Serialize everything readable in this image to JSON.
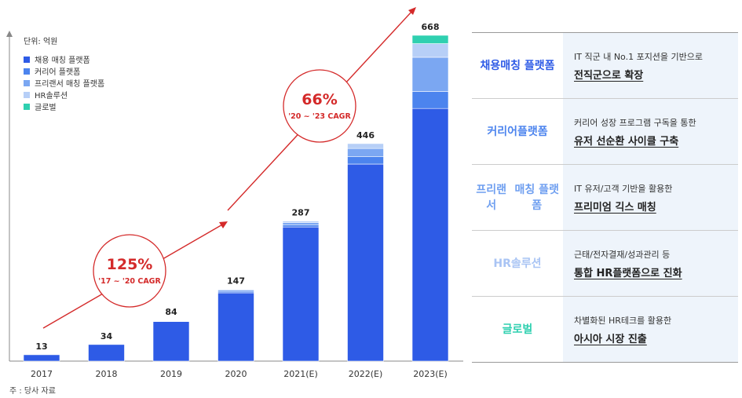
{
  "chart_data": {
    "type": "bar",
    "stacked": true,
    "unit_label": "단위: 억원",
    "categories": [
      "2017",
      "2018",
      "2019",
      "2020",
      "2021(E)",
      "2022(E)",
      "2023(E)"
    ],
    "totals": [
      13,
      34,
      84,
      147,
      287,
      446,
      668
    ],
    "series": [
      {
        "name": "채용 매칭 플랫폼",
        "color": "#2e5be6",
        "values": [
          13,
          34,
          81,
          140,
          275,
          404,
          518
        ]
      },
      {
        "name": "커리어 플랫폼",
        "color": "#4c84ee",
        "values": [
          0,
          0,
          1,
          3,
          4,
          15,
          35
        ]
      },
      {
        "name": "프리랜서 매칭 플랫폼",
        "color": "#7ba7f2",
        "values": [
          0,
          0,
          1,
          3,
          5,
          17,
          70
        ]
      },
      {
        "name": "HR솔루션",
        "color": "#b7cff7",
        "values": [
          0,
          0,
          1,
          1,
          3,
          10,
          28
        ]
      },
      {
        "name": "글로벌",
        "color": "#2fd0b0",
        "values": [
          0,
          0,
          0,
          0,
          0,
          0,
          17
        ]
      }
    ],
    "ylim": [
      0,
      700
    ],
    "annotations": [
      {
        "value": "125%",
        "label": "'17 ~ '20 CAGR"
      },
      {
        "value": "66%",
        "label": "'20 ~ '23 CAGR"
      }
    ],
    "note": "주 : 당사 자료"
  },
  "panel": [
    {
      "title_lines": [
        "채용",
        "매칭 플랫폼"
      ],
      "color": "#2e5be6",
      "sub": "IT 직군 내 No.1 포지션을 기반으로",
      "main": "전직군으로 확장"
    },
    {
      "title_lines": [
        "커리어",
        "플랫폼"
      ],
      "color": "#4c84ee",
      "sub": "커리어 성장 프로그램 구독을 통한",
      "main": "유저 선순환 사이클 구축"
    },
    {
      "title_lines": [
        "프리랜서",
        "매칭 플랫폼"
      ],
      "color": "#6f9ff0",
      "sub": "IT 유저/고객 기반을 활용한",
      "main": "프리미엄 긱스 매칭"
    },
    {
      "title_lines": [
        "HR솔루션"
      ],
      "color": "#a9c4f4",
      "sub": "근태/전자결재/성과관리 등",
      "main": "통합 HR플랫폼으로 진화"
    },
    {
      "title_lines": [
        "글로벌"
      ],
      "color": "#2fd0b0",
      "sub": "차별화된 HR테크를 활용한",
      "main": "아시아 시장 진출"
    }
  ]
}
